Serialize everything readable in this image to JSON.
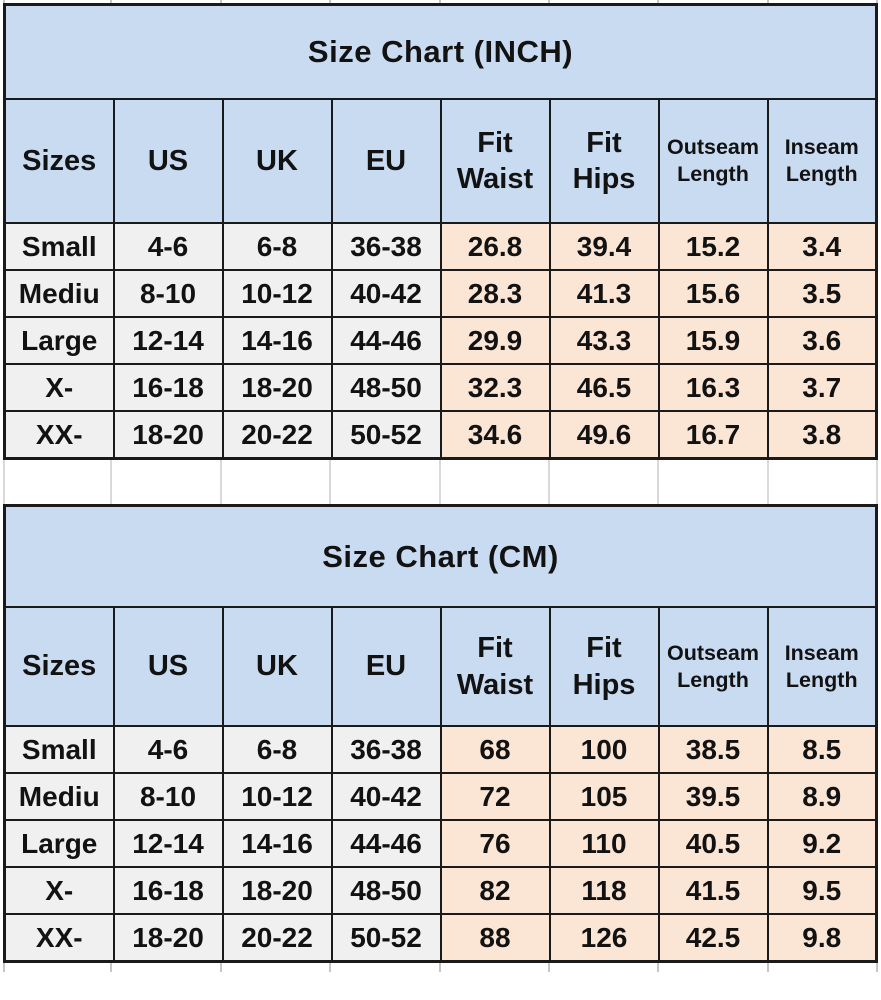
{
  "colors": {
    "header_blue": "#c9dbf1",
    "cell_gray": "#f0f0f0",
    "cell_peach": "#fbe5d4",
    "border_dark": "#1a1a1a",
    "gridline_light": "#d9d9d9",
    "selection_green": "#2fb27d",
    "text": "#121212"
  },
  "chart_data": [
    {
      "type": "table",
      "title": "Size Chart (INCH)",
      "columns": [
        "Sizes",
        "US",
        "UK",
        "EU",
        "Fit Waist",
        "Fit Hips",
        "Outseam Length",
        "Inseam Length"
      ],
      "rows": [
        [
          "Small",
          "4-6",
          "6-8",
          "36-38",
          "26.8",
          "39.4",
          "15.2",
          "3.4"
        ],
        [
          "Mediu",
          "8-10",
          "10-12",
          "40-42",
          "28.3",
          "41.3",
          "15.6",
          "3.5"
        ],
        [
          "Large",
          "12-14",
          "14-16",
          "44-46",
          "29.9",
          "43.3",
          "15.9",
          "3.6"
        ],
        [
          "X-",
          "16-18",
          "18-20",
          "48-50",
          "32.3",
          "46.5",
          "16.3",
          "3.7"
        ],
        [
          "XX-",
          "18-20",
          "20-22",
          "50-52",
          "34.6",
          "49.6",
          "16.7",
          "3.8"
        ]
      ],
      "selected_cell": {
        "row": 1,
        "col": 7,
        "value": "3.5"
      }
    },
    {
      "type": "table",
      "title": "Size Chart (CM)",
      "columns": [
        "Sizes",
        "US",
        "UK",
        "EU",
        "Fit Waist",
        "Fit Hips",
        "Outseam Length",
        "Inseam Length"
      ],
      "rows": [
        [
          "Small",
          "4-6",
          "6-8",
          "36-38",
          "68",
          "100",
          "38.5",
          "8.5"
        ],
        [
          "Mediu",
          "8-10",
          "10-12",
          "40-42",
          "72",
          "105",
          "39.5",
          "8.9"
        ],
        [
          "Large",
          "12-14",
          "14-16",
          "44-46",
          "76",
          "110",
          "40.5",
          "9.2"
        ],
        [
          "X-",
          "16-18",
          "18-20",
          "48-50",
          "82",
          "118",
          "41.5",
          "9.5"
        ],
        [
          "XX-",
          "18-20",
          "20-22",
          "50-52",
          "88",
          "126",
          "42.5",
          "9.8"
        ]
      ],
      "selected_cell": null
    }
  ]
}
